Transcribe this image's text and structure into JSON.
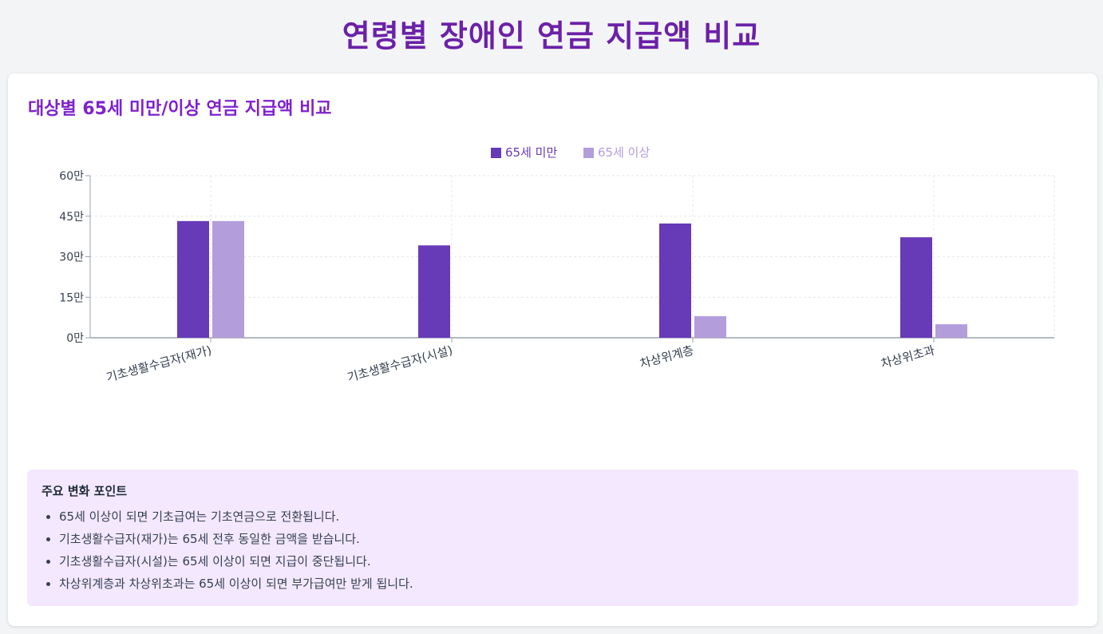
{
  "page": {
    "title": "연령별 장애인 연금 지급액 비교"
  },
  "card": {
    "title": "대상별 65세 미만/이상 연금 지급액 비교"
  },
  "chart_data": {
    "type": "bar",
    "categories": [
      "기초생활수급자(재가)",
      "기초생활수급자(시설)",
      "차상위계층",
      "차상위초과"
    ],
    "series": [
      {
        "name": "65세 미만",
        "values": [
          43.2,
          34.2,
          42.3,
          37.2
        ],
        "color": "#673ab7"
      },
      {
        "name": "65세 이상",
        "values": [
          43.2,
          0,
          8.0,
          5.0
        ],
        "color": "#b39ddb"
      }
    ],
    "ylim": [
      0,
      60
    ],
    "yticks": [
      0,
      15,
      30,
      45,
      60
    ],
    "ytick_labels": [
      "0만",
      "15만",
      "30만",
      "45만",
      "60만"
    ],
    "grid": true,
    "legend": "top-center",
    "xlabel": "",
    "ylabel": ""
  },
  "notes": {
    "title": "주요 변화 포인트",
    "items": [
      "65세 이상이 되면 기초급여는 기초연금으로 전환됩니다.",
      "기초생활수급자(재가)는 65세 전후 동일한 금액을 받습니다.",
      "기초생활수급자(시설)는 65세 이상이 되면 지급이 중단됩니다.",
      "차상위계층과 차상위초과는 65세 이상이 되면 부가급여만 받게 됩니다."
    ]
  }
}
